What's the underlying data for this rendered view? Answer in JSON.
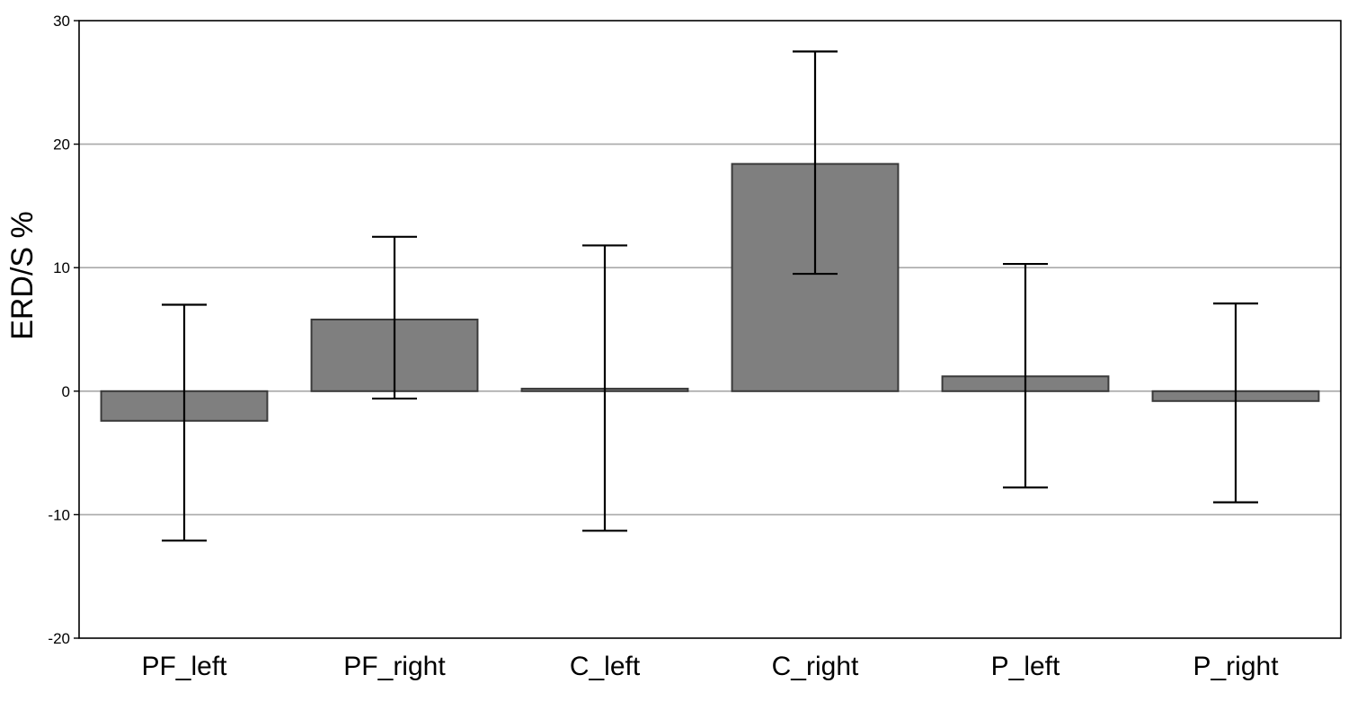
{
  "chart_data": {
    "type": "bar",
    "title": "",
    "xlabel": "",
    "ylabel": "ERD/S %",
    "ylim": [
      -20,
      30
    ],
    "yticks": [
      -20,
      -10,
      0,
      10,
      20,
      30
    ],
    "ytick_labels": [
      "-20",
      "-10",
      "0",
      "10",
      "20",
      "30"
    ],
    "grid": "horizontal",
    "categories": [
      "PF_left",
      "PF_right",
      "C_left",
      "C_right",
      "P_left",
      "P_right"
    ],
    "values": [
      -2.4,
      5.8,
      0.2,
      18.4,
      1.2,
      -0.8
    ],
    "error_bars": {
      "upper": [
        7.0,
        12.5,
        11.8,
        27.5,
        10.3,
        7.1
      ],
      "lower": [
        -12.1,
        -0.6,
        -11.3,
        9.5,
        -7.8,
        -9.0
      ]
    },
    "colors": {
      "bar_fill": "#7f7f7f",
      "bar_stroke": "#3a3a3a",
      "gridline": "#a9a9a9",
      "axis": "#000000"
    }
  }
}
